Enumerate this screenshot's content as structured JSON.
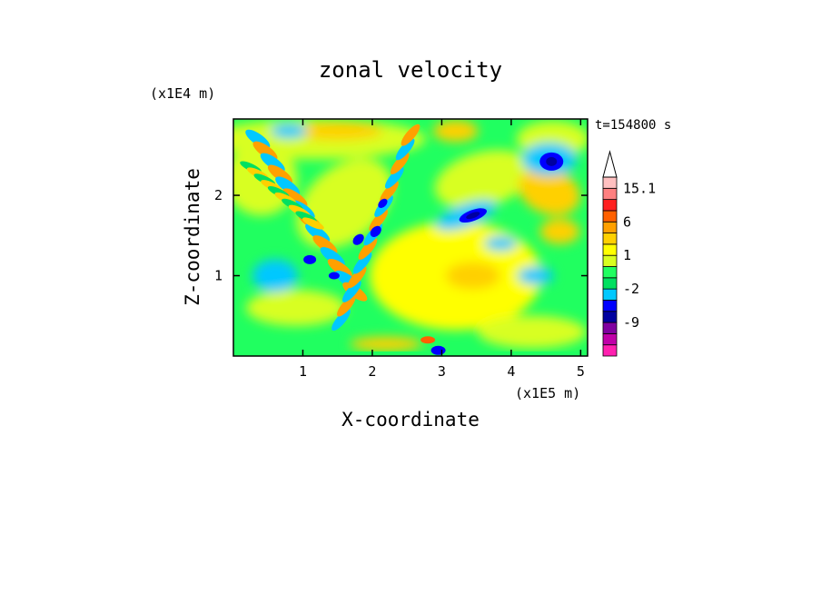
{
  "chart_data": {
    "type": "heatmap",
    "title": "zonal velocity",
    "xlabel": "X-coordinate",
    "ylabel": "Z-coordinate",
    "x_unit": "(x1E5 m)",
    "y_unit": "(x1E4 m)",
    "time_label": "t=154800 s",
    "xlim": [
      0,
      5.1
    ],
    "ylim": [
      0,
      2.95
    ],
    "xticks": [
      {
        "value": 1,
        "label": "1"
      },
      {
        "value": 2,
        "label": "2"
      },
      {
        "value": 3,
        "label": "3"
      },
      {
        "value": 4,
        "label": "4"
      },
      {
        "value": 5,
        "label": "5"
      }
    ],
    "yticks": [
      {
        "value": 1,
        "label": "1"
      },
      {
        "value": 2,
        "label": "2"
      }
    ],
    "colorbar": {
      "levels": [
        -15,
        -12,
        -9,
        -6,
        -4,
        -2,
        -1,
        0,
        1,
        2,
        4,
        6,
        9,
        12,
        15.1
      ],
      "labels": [
        {
          "value": 15.1,
          "label": "15.1"
        },
        {
          "value": 6,
          "label": "6"
        },
        {
          "value": 1,
          "label": "1"
        },
        {
          "value": -2,
          "label": "-2"
        },
        {
          "value": -9,
          "label": "-9"
        }
      ],
      "colors": [
        "#ff20b0",
        "#c000a8",
        "#8000a0",
        "#0000a0",
        "#0000ff",
        "#00c8ff",
        "#00e060",
        "#20ff60",
        "#d8ff20",
        "#ffff00",
        "#ffd000",
        "#ffa000",
        "#ff6000",
        "#ff2020",
        "#ff8080",
        "#ffc0c0"
      ],
      "extend_max": true
    },
    "field_summary": "Mostly weak flow (-1 to 4) with green/yellow bands; oblique wave beams of alternating orange/cyan from x=0.2-3.0 over z=0.2-2.9; strong negative cores near (1.8,1.45), (2.1,1.55), (3.4,1.75), (4.55,2.4), (1.1,1.2), (2.95,0.05); positive cores near (2.8,0.15), (4.85,1.8)."
  }
}
